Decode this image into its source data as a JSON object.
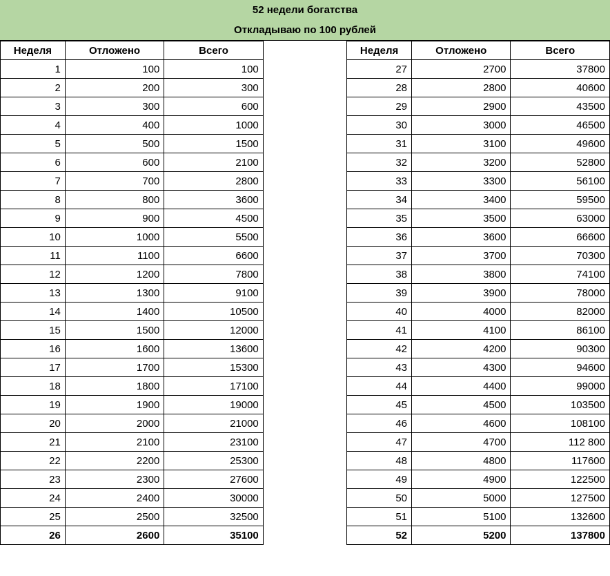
{
  "title": "52 недели богатства",
  "subtitle": "Откладываю по 100 рублей",
  "headers": {
    "week": "Неделя",
    "deposited": "Отложено",
    "total": "Всего"
  },
  "colors": {
    "header_bg": "#b5d6a3",
    "border": "#000000",
    "bg": "#ffffff"
  },
  "left_rows": [
    {
      "week": "1",
      "dep": "100",
      "total": "100",
      "bold": false
    },
    {
      "week": "2",
      "dep": "200",
      "total": "300",
      "bold": false
    },
    {
      "week": "3",
      "dep": "300",
      "total": "600",
      "bold": false
    },
    {
      "week": "4",
      "dep": "400",
      "total": "1000",
      "bold": false
    },
    {
      "week": "5",
      "dep": "500",
      "total": "1500",
      "bold": false
    },
    {
      "week": "6",
      "dep": "600",
      "total": "2100",
      "bold": false
    },
    {
      "week": "7",
      "dep": "700",
      "total": "2800",
      "bold": false
    },
    {
      "week": "8",
      "dep": "800",
      "total": "3600",
      "bold": false
    },
    {
      "week": "9",
      "dep": "900",
      "total": "4500",
      "bold": false
    },
    {
      "week": "10",
      "dep": "1000",
      "total": "5500",
      "bold": false
    },
    {
      "week": "11",
      "dep": "1100",
      "total": "6600",
      "bold": false
    },
    {
      "week": "12",
      "dep": "1200",
      "total": "7800",
      "bold": false
    },
    {
      "week": "13",
      "dep": "1300",
      "total": "9100",
      "bold": false
    },
    {
      "week": "14",
      "dep": "1400",
      "total": "10500",
      "bold": false
    },
    {
      "week": "15",
      "dep": "1500",
      "total": "12000",
      "bold": false
    },
    {
      "week": "16",
      "dep": "1600",
      "total": "13600",
      "bold": false
    },
    {
      "week": "17",
      "dep": "1700",
      "total": "15300",
      "bold": false
    },
    {
      "week": "18",
      "dep": "1800",
      "total": "17100",
      "bold": false
    },
    {
      "week": "19",
      "dep": "1900",
      "total": "19000",
      "bold": false
    },
    {
      "week": "20",
      "dep": "2000",
      "total": "21000",
      "bold": false
    },
    {
      "week": "21",
      "dep": "2100",
      "total": "23100",
      "bold": false
    },
    {
      "week": "22",
      "dep": "2200",
      "total": "25300",
      "bold": false
    },
    {
      "week": "23",
      "dep": "2300",
      "total": "27600",
      "bold": false
    },
    {
      "week": "24",
      "dep": "2400",
      "total": "30000",
      "bold": false
    },
    {
      "week": "25",
      "dep": "2500",
      "total": "32500",
      "bold": false
    },
    {
      "week": "26",
      "dep": "2600",
      "total": "35100",
      "bold": true
    }
  ],
  "right_rows": [
    {
      "week": "27",
      "dep": "2700",
      "total": "37800",
      "bold": false
    },
    {
      "week": "28",
      "dep": "2800",
      "total": "40600",
      "bold": false
    },
    {
      "week": "29",
      "dep": "2900",
      "total": "43500",
      "bold": false
    },
    {
      "week": "30",
      "dep": "3000",
      "total": "46500",
      "bold": false
    },
    {
      "week": "31",
      "dep": "3100",
      "total": "49600",
      "bold": false
    },
    {
      "week": "32",
      "dep": "3200",
      "total": "52800",
      "bold": false
    },
    {
      "week": "33",
      "dep": "3300",
      "total": "56100",
      "bold": false
    },
    {
      "week": "34",
      "dep": "3400",
      "total": "59500",
      "bold": false
    },
    {
      "week": "35",
      "dep": "3500",
      "total": "63000",
      "bold": false
    },
    {
      "week": "36",
      "dep": "3600",
      "total": "66600",
      "bold": false
    },
    {
      "week": "37",
      "dep": "3700",
      "total": "70300",
      "bold": false
    },
    {
      "week": "38",
      "dep": "3800",
      "total": "74100",
      "bold": false
    },
    {
      "week": "39",
      "dep": "3900",
      "total": "78000",
      "bold": false
    },
    {
      "week": "40",
      "dep": "4000",
      "total": "82000",
      "bold": false
    },
    {
      "week": "41",
      "dep": "4100",
      "total": "86100",
      "bold": false
    },
    {
      "week": "42",
      "dep": "4200",
      "total": "90300",
      "bold": false
    },
    {
      "week": "43",
      "dep": "4300",
      "total": "94600",
      "bold": false
    },
    {
      "week": "44",
      "dep": "4400",
      "total": "99000",
      "bold": false
    },
    {
      "week": "45",
      "dep": "4500",
      "total": "103500",
      "bold": false
    },
    {
      "week": "46",
      "dep": "4600",
      "total": "108100",
      "bold": false
    },
    {
      "week": "47",
      "dep": "4700",
      "total": "112 800",
      "bold": false
    },
    {
      "week": "48",
      "dep": "4800",
      "total": "117600",
      "bold": false
    },
    {
      "week": "49",
      "dep": "4900",
      "total": "122500",
      "bold": false
    },
    {
      "week": "50",
      "dep": "5000",
      "total": "127500",
      "bold": false
    },
    {
      "week": "51",
      "dep": "5100",
      "total": "132600",
      "bold": false
    },
    {
      "week": "52",
      "dep": "5200",
      "total": "137800",
      "bold": true
    }
  ]
}
